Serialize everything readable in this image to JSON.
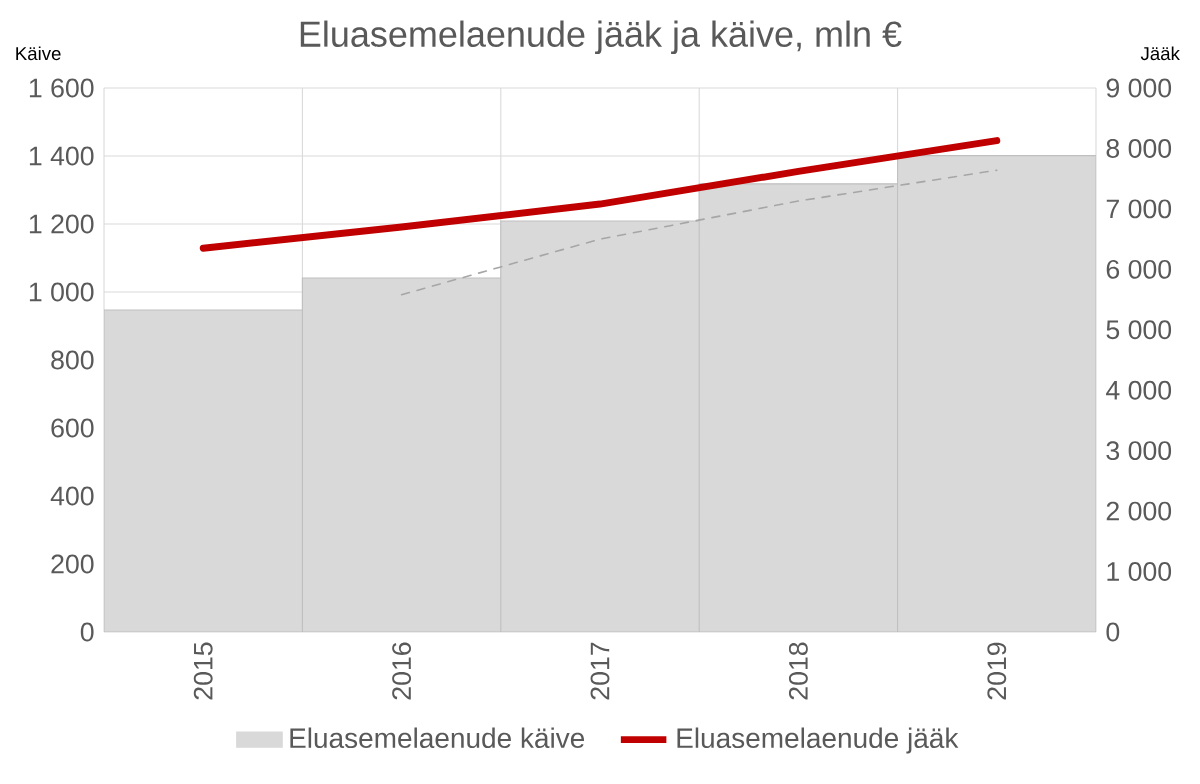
{
  "chart_data": {
    "type": "bar",
    "title": "Eluasemelaenude jääk ja käive, mln €",
    "ylabel": "Käive",
    "y2label": "Jääk",
    "categories": [
      "2015",
      "2016",
      "2017",
      "2018",
      "2019"
    ],
    "series": [
      {
        "name": "Eluasemelaenude käive",
        "color": "#d9d9d9",
        "values": [
          947,
          1041,
          1209,
          1318,
          1401
        ]
      },
      {
        "name": "Eluasemelaenude jääk",
        "type": "line",
        "axis": "y2",
        "color": "#c00000",
        "values": [
          6350,
          6700,
          7080,
          7620,
          8130
        ]
      },
      {
        "type": "line",
        "axis": "y2",
        "color": "#a6a6a6",
        "line_style": "dashed",
        "values": [
          null,
          5580,
          6500,
          7130,
          7640
        ]
      }
    ],
    "ylim": [
      0,
      1600
    ],
    "yticks": [
      0,
      200,
      400,
      600,
      800,
      {
        "value": 1000,
        "label": "1 000"
      },
      {
        "value": 1200,
        "label": "1 200"
      },
      {
        "value": 1400,
        "label": "1 400"
      },
      {
        "value": 1600,
        "label": "1 600"
      }
    ],
    "y2lim": [
      0,
      9000
    ],
    "y2ticks": [
      0,
      {
        "value": 1000,
        "label": "1 000"
      },
      {
        "value": 2000,
        "label": "2 000"
      },
      {
        "value": 3000,
        "label": "3 000"
      },
      {
        "value": 4000,
        "label": "4 000"
      },
      {
        "value": 5000,
        "label": "5 000"
      },
      {
        "value": 6000,
        "label": "6 000"
      },
      {
        "value": 7000,
        "label": "7 000"
      },
      {
        "value": 8000,
        "label": "8 000"
      },
      {
        "value": 9000,
        "label": "9 000"
      }
    ],
    "grid": true,
    "legend": "bottom"
  }
}
